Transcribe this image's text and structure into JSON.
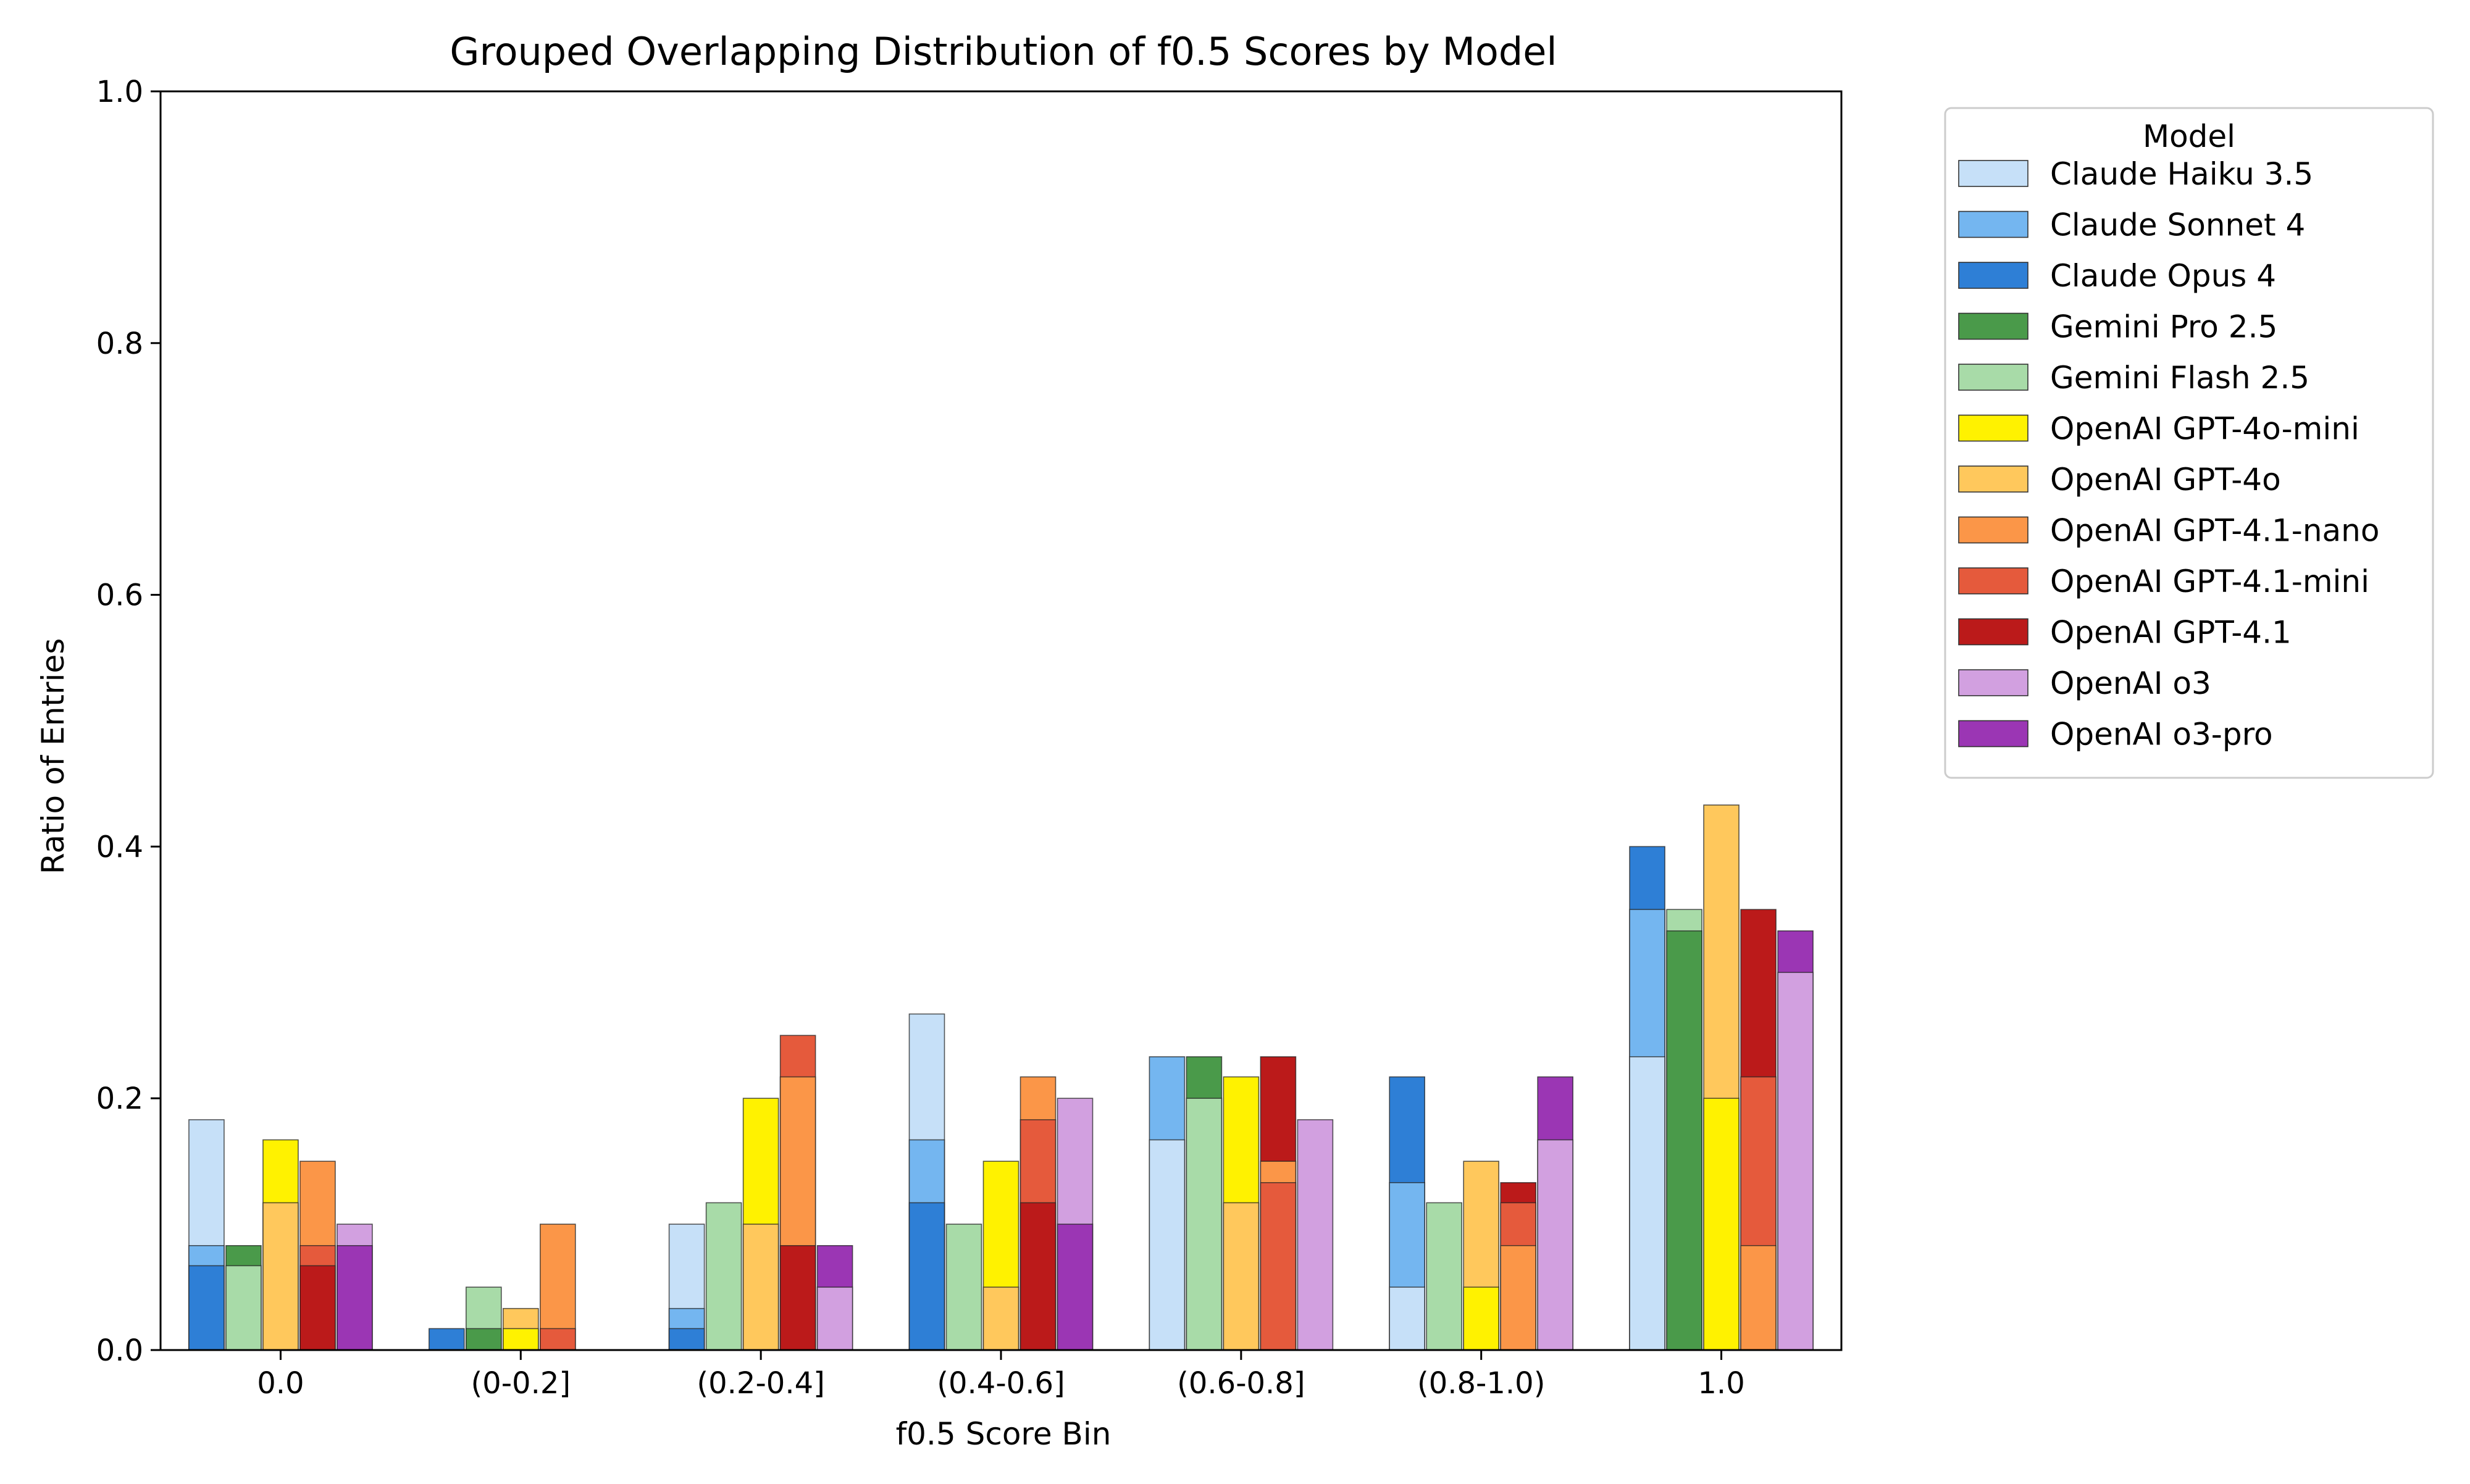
{
  "chart_data": {
    "type": "bar",
    "title": "Grouped Overlapping Distribution of f0.5 Scores by Model",
    "xlabel": "f0.5 Score Bin",
    "ylabel": "Ratio of Entries",
    "ylim": [
      0,
      1.0
    ],
    "yticks": [
      "0.0",
      "0.2",
      "0.4",
      "0.6",
      "0.8",
      "1.0"
    ],
    "categories": [
      "0.0",
      "(0-0.2]",
      "(0.2-0.4]",
      "(0.4-0.6]",
      "(0.6-0.8]",
      "(0.8-1.0)",
      "1.0"
    ],
    "legend": {
      "title": "Model",
      "placement": "outside-right-top"
    },
    "grid": false,
    "series": [
      {
        "name": "Claude Haiku 3.5",
        "color": "#c6e0f8",
        "values": [
          0.183,
          0.0,
          0.1,
          0.267,
          0.167,
          0.05,
          0.233
        ]
      },
      {
        "name": "Claude Sonnet 4",
        "color": "#74b6f0",
        "values": [
          0.083,
          0.0,
          0.033,
          0.167,
          0.233,
          0.133,
          0.35
        ]
      },
      {
        "name": "Claude Opus 4",
        "color": "#2e7fd6",
        "values": [
          0.067,
          0.017,
          0.017,
          0.117,
          0.0,
          0.217,
          0.4
        ]
      },
      {
        "name": "Gemini Pro 2.5",
        "color": "#4a9a4a",
        "values": [
          0.083,
          0.017,
          0.0,
          0.0,
          0.233,
          0.0,
          0.333
        ]
      },
      {
        "name": "Gemini Flash 2.5",
        "color": "#a8dba8",
        "values": [
          0.067,
          0.05,
          0.117,
          0.1,
          0.2,
          0.117,
          0.35
        ]
      },
      {
        "name": "OpenAI GPT-4o-mini",
        "color": "#fff200",
        "values": [
          0.167,
          0.017,
          0.2,
          0.15,
          0.217,
          0.05,
          0.2
        ]
      },
      {
        "name": "OpenAI GPT-4o",
        "color": "#ffc85c",
        "values": [
          0.117,
          0.033,
          0.1,
          0.05,
          0.117,
          0.15,
          0.433
        ]
      },
      {
        "name": "OpenAI GPT-4.1-nano",
        "color": "#fb9648",
        "values": [
          0.15,
          0.1,
          0.217,
          0.217,
          0.15,
          0.083,
          0.083
        ]
      },
      {
        "name": "OpenAI GPT-4.1-mini",
        "color": "#e55a3c",
        "values": [
          0.083,
          0.017,
          0.25,
          0.183,
          0.133,
          0.117,
          0.217
        ]
      },
      {
        "name": "OpenAI GPT-4.1",
        "color": "#bb1a1a",
        "values": [
          0.067,
          0.0,
          0.083,
          0.117,
          0.233,
          0.133,
          0.35
        ]
      },
      {
        "name": "OpenAI o3",
        "color": "#d2a0e0",
        "values": [
          0.1,
          0.0,
          0.05,
          0.2,
          0.183,
          0.167,
          0.3
        ]
      },
      {
        "name": "OpenAI o3-pro",
        "color": "#9b36b4",
        "values": [
          0.083,
          0.0,
          0.083,
          0.1,
          0.0,
          0.217,
          0.333
        ]
      }
    ],
    "groups": [
      {
        "label": "Claude",
        "members": [
          0,
          1,
          2
        ]
      },
      {
        "label": "Gemini",
        "members": [
          3,
          4
        ]
      },
      {
        "label": "GPT-4o",
        "members": [
          5,
          6
        ]
      },
      {
        "label": "GPT-4.1",
        "members": [
          7,
          8,
          9
        ]
      },
      {
        "label": "o3",
        "members": [
          10,
          11
        ]
      }
    ]
  }
}
